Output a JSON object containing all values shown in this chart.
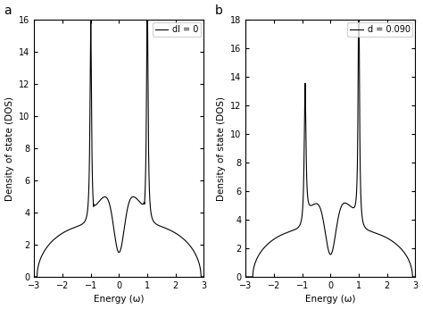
{
  "title_a": "a",
  "title_b": "b",
  "legend_a": "dl = 0",
  "legend_b": "d = 0.090",
  "xlabel": "Energy (ω)",
  "ylabel": "Density of state (DOS)",
  "xlim": [
    -3,
    3
  ],
  "ylim_a": [
    0,
    16
  ],
  "ylim_b": [
    0,
    18
  ],
  "yticks_a": [
    0,
    2,
    4,
    6,
    8,
    10,
    12,
    14,
    16
  ],
  "yticks_b": [
    0,
    2,
    4,
    6,
    8,
    10,
    12,
    14,
    16,
    18
  ],
  "xticks": [
    -3,
    -2,
    -1,
    0,
    1,
    2,
    3
  ],
  "line_color": "#000000",
  "bg_color": "#ffffff"
}
